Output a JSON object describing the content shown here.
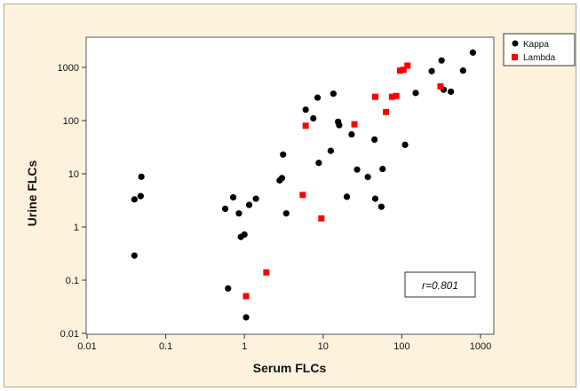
{
  "chart_data": {
    "type": "scatter",
    "xlabel": "Serum FLCs",
    "ylabel": "Urine FLCs",
    "xscale": "log",
    "yscale": "log",
    "xlim": [
      0.01,
      1000
    ],
    "ylim": [
      0.01,
      3000
    ],
    "xticks": [
      0.01,
      0.1,
      1,
      10,
      100,
      1000
    ],
    "xtick_labels": [
      "0.01",
      "0.1",
      "1",
      "10",
      "100",
      "1000"
    ],
    "yticks": [
      0.01,
      0.1,
      1,
      10,
      100,
      1000
    ],
    "ytick_labels": [
      "0.01",
      "0.1",
      "1",
      "10",
      "100",
      "1000"
    ],
    "grid": false,
    "legend_position": "top-right",
    "annotation": "r=0.801",
    "series": [
      {
        "name": "Kappa",
        "marker": "circle",
        "color": "#000000",
        "points": [
          [
            0.04,
            0.29
          ],
          [
            0.04,
            3.3
          ],
          [
            0.048,
            3.8
          ],
          [
            0.049,
            8.8
          ],
          [
            0.57,
            2.2
          ],
          [
            0.62,
            0.07
          ],
          [
            0.72,
            3.6
          ],
          [
            0.85,
            1.8
          ],
          [
            0.9,
            0.65
          ],
          [
            1.0,
            0.72
          ],
          [
            1.05,
            0.02
          ],
          [
            1.15,
            2.6
          ],
          [
            1.4,
            3.4
          ],
          [
            2.8,
            7.5
          ],
          [
            3.0,
            8.3
          ],
          [
            3.1,
            23
          ],
          [
            3.4,
            1.8
          ],
          [
            6.0,
            160
          ],
          [
            7.5,
            110
          ],
          [
            8.5,
            270
          ],
          [
            8.8,
            16
          ],
          [
            12.5,
            27
          ],
          [
            13.5,
            320
          ],
          [
            15.5,
            95
          ],
          [
            16.0,
            82
          ],
          [
            20,
            3.7
          ],
          [
            23,
            55
          ],
          [
            27,
            12
          ],
          [
            37,
            8.7
          ],
          [
            45,
            44
          ],
          [
            46,
            3.4
          ],
          [
            55,
            2.4
          ],
          [
            57,
            12.3
          ],
          [
            110,
            35
          ],
          [
            150,
            330
          ],
          [
            240,
            850
          ],
          [
            320,
            1350
          ],
          [
            340,
            380
          ],
          [
            420,
            350
          ],
          [
            600,
            870
          ],
          [
            800,
            1900
          ]
        ]
      },
      {
        "name": "Lambda",
        "marker": "square",
        "color": "#ff0000",
        "points": [
          [
            1.05,
            0.05
          ],
          [
            1.9,
            0.14
          ],
          [
            5.5,
            4.0
          ],
          [
            6.0,
            80
          ],
          [
            9.5,
            1.45
          ],
          [
            25,
            85
          ],
          [
            46,
            280
          ],
          [
            63,
            145
          ],
          [
            75,
            280
          ],
          [
            85,
            290
          ],
          [
            95,
            870
          ],
          [
            105,
            900
          ],
          [
            118,
            1080
          ],
          [
            310,
            440
          ]
        ]
      }
    ]
  }
}
